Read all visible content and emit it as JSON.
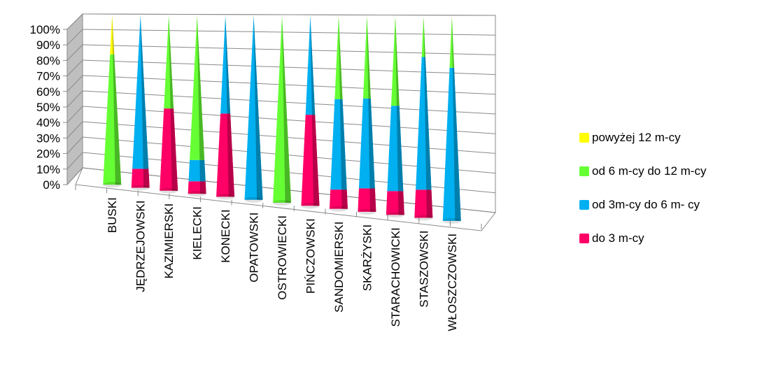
{
  "chart_data": {
    "type": "stacked-100-cone-bar-3d",
    "categories": [
      "BUSKI",
      "JĘDRZEJOWSKI",
      "KAZIMIERSKI",
      "KIELECKI",
      "KONECKI",
      "OPATOWSKI",
      "OSTROWIECKI",
      "PIŃCZOWSKI",
      "SANDOMIERSKI",
      "SKARŻYSKI",
      "STARACHOWICKI",
      "STASZOWSKI",
      "WŁOSZCZOWSKI"
    ],
    "yticks": [
      "0%",
      "10%",
      "20%",
      "30%",
      "40%",
      "50%",
      "60%",
      "70%",
      "80%",
      "90%",
      "100%"
    ],
    "ylim": [
      0,
      100
    ],
    "series": [
      {
        "name": "do 3 m-cy",
        "color": "#ff0066",
        "values": [
          0,
          11,
          47,
          7,
          46,
          0,
          0,
          48,
          10,
          12,
          12,
          14,
          0
        ]
      },
      {
        "name": "od 3m-cy do 6 m- cy",
        "color": "#00b0f0",
        "values": [
          0,
          89,
          0,
          12,
          54,
          100,
          0,
          52,
          47,
          46,
          43,
          66,
          75
        ]
      },
      {
        "name": "od 6 m-cy do 12 m-cy",
        "color": "#66ff33",
        "values": [
          77,
          0,
          53,
          81,
          0,
          0,
          100,
          0,
          43,
          42,
          45,
          20,
          25
        ]
      },
      {
        "name": "powyżej 12 m-cy",
        "color": "#ffff00",
        "values": [
          23,
          0,
          0,
          0,
          0,
          0,
          0,
          0,
          0,
          0,
          0,
          0,
          0
        ]
      }
    ],
    "legend_position": "right",
    "grid": true
  }
}
